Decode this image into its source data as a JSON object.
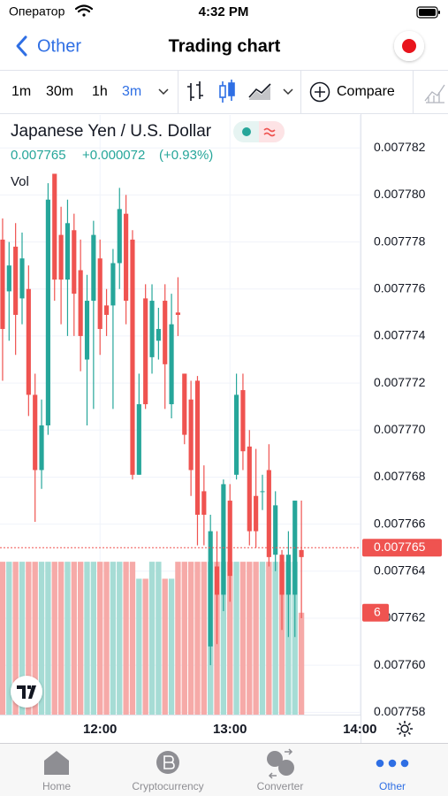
{
  "status_bar": {
    "carrier": "Оператор",
    "time": "4:32 PM"
  },
  "nav": {
    "back": "Other",
    "title": "Trading chart"
  },
  "toolbar": {
    "intervals": [
      "1m",
      "30m",
      "1h",
      "3m"
    ],
    "compare": "Compare"
  },
  "tabs": [
    "Home",
    "Cryptocurrency",
    "Converter",
    "Other"
  ],
  "chart_data": {
    "type": "candlestick",
    "title": "Japanese Yen / U.S. Dollar",
    "last": 0.007765,
    "change": "+0.000072",
    "change_pct": "(+0.93%)",
    "volume_title": "Vol",
    "up_color": "#26a69a",
    "down_color": "#ef5350",
    "volume_up_color": "#a6dcd5",
    "volume_down_color": "#f6aaa8",
    "grid": true,
    "xlim": [
      673.8,
      840.3
    ],
    "xticks": [
      {
        "value": 720,
        "label": "12:00"
      },
      {
        "value": 780,
        "label": "13:00"
      },
      {
        "value": 840,
        "label": "14:00"
      }
    ],
    "ylim": [
      0.0077579,
      0.0077834
    ],
    "yticks": [
      0.007782,
      {
        "value": 0.00778,
        "label": "0.007780"
      },
      0.007778,
      0.007776,
      0.007774,
      0.007772,
      {
        "value": 0.00777,
        "label": "0.007770"
      },
      0.007768,
      0.007766,
      0.007764,
      0.007762,
      {
        "value": 0.00776,
        "label": "0.007760"
      },
      0.007758
    ],
    "volume_lim": [
      0,
      35.3
    ],
    "x": [
      675,
      678,
      681,
      684,
      687,
      690,
      693,
      696,
      699,
      702,
      705,
      708,
      711,
      714,
      717,
      720,
      723,
      726,
      729,
      732,
      735,
      738,
      741,
      744,
      747,
      750,
      753,
      756,
      759,
      762,
      765,
      768,
      771,
      774,
      777,
      780,
      783,
      786,
      789,
      792,
      795,
      798,
      801,
      804,
      807,
      810,
      813
    ],
    "open": [
      0.0077781,
      0.0077759,
      0.0077778,
      0.0077756,
      0.007776,
      0.0077715,
      0.0077683,
      0.0077702,
      0.0077809,
      0.0077783,
      0.0077764,
      0.0077785,
      0.0077768,
      0.007773,
      0.0077755,
      0.0077773,
      0.0077753,
      0.0077753,
      0.0077771,
      0.0077792,
      0.0077781,
      0.0077681,
      0.0077756,
      0.0077731,
      0.0077738,
      0.0077755,
      0.0077711,
      0.007775,
      0.0077724,
      0.0077713,
      0.0077721,
      0.0077674,
      0.0077608,
      0.0077642,
      0.007763,
      0.007767,
      0.0077681,
      0.0077717,
      0.0077693,
      0.0077672,
      0.0077674,
      0.0077683,
      0.0077647,
      0.0077647,
      0.007763,
      0.007763,
      0.0077649
    ],
    "high": [
      0.007779,
      0.007778,
      0.0077788,
      0.0077784,
      0.007777,
      0.0077724,
      0.0077713,
      0.0077805,
      0.0077809,
      0.0077795,
      0.0077798,
      0.0077792,
      0.0077781,
      0.0077766,
      0.0077789,
      0.0077781,
      0.007776,
      0.0077777,
      0.0077803,
      0.00778,
      0.0077785,
      0.0077724,
      0.0077762,
      0.0077762,
      0.0077752,
      0.0077762,
      0.0077758,
      0.0077765,
      0.0077724,
      0.0077721,
      0.0077723,
      0.0077685,
      0.0077664,
      0.0077657,
      0.0077679,
      0.0077677,
      0.0077724,
      0.0077724,
      0.00777,
      0.0077692,
      0.0077681,
      0.0077694,
      0.0077674,
      0.0077649,
      0.0077657,
      0.007767,
      0.007767
    ],
    "low": [
      0.0077721,
      0.0077738,
      0.0077732,
      0.0077745,
      0.0077706,
      0.0077661,
      0.0077675,
      0.0077698,
      0.0077755,
      0.0077745,
      0.007774,
      0.007774,
      0.0077725,
      0.0077702,
      0.0077709,
      0.0077732,
      0.007774,
      0.0077709,
      0.007776,
      0.0077745,
      0.0077679,
      0.0077681,
      0.0077709,
      0.0077724,
      0.007773,
      0.0077709,
      0.0077705,
      0.007774,
      0.0077694,
      0.0077672,
      0.0077651,
      0.0077651,
      0.00776,
      0.0077609,
      0.0077623,
      0.0077627,
      0.0077679,
      0.0077683,
      0.0077651,
      0.007765,
      0.0077666,
      0.0077642,
      0.007764,
      0.0077615,
      0.0077612,
      0.0077612,
      0.007762
    ],
    "close": [
      0.0077743,
      0.007777,
      0.0077749,
      0.0077773,
      0.0077715,
      0.0077683,
      0.0077702,
      0.0077798,
      0.0077764,
      0.0077764,
      0.0077788,
      0.0077758,
      0.007774,
      0.0077755,
      0.0077783,
      0.0077743,
      0.0077749,
      0.0077771,
      0.0077794,
      0.0077755,
      0.0077681,
      0.0077711,
      0.0077711,
      0.0077755,
      0.0077743,
      0.0077728,
      0.0077745,
      0.0077749,
      0.0077698,
      0.0077683,
      0.0077664,
      0.0077664,
      0.0077657,
      0.007763,
      0.0077677,
      0.0077638,
      0.0077715,
      0.0077691,
      0.0077657,
      0.0077657,
      0.0077674,
      0.0077646,
      0.0077668,
      0.007763,
      0.0077647,
      0.007767,
      0.0077646
    ],
    "volume": [
      9,
      9,
      9,
      9,
      9,
      9,
      9,
      9,
      9,
      9,
      9,
      9,
      9,
      9,
      9,
      9,
      9,
      9,
      9,
      9,
      9,
      8,
      8,
      9,
      9,
      8,
      8,
      9,
      9,
      9,
      9,
      9,
      9,
      9,
      9,
      9,
      9,
      9,
      9,
      9,
      9,
      9,
      9,
      9,
      9,
      9,
      6
    ]
  }
}
